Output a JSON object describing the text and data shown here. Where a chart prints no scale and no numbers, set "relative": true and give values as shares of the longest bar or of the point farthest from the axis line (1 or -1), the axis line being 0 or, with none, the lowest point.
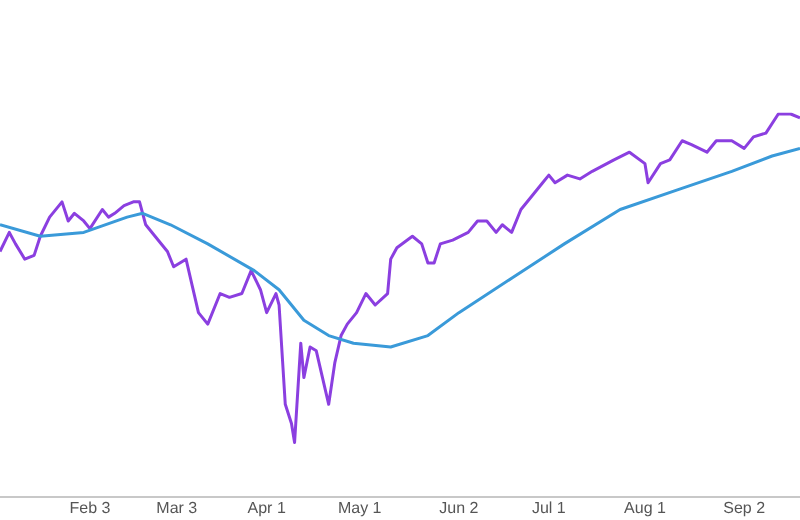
{
  "chart_data": {
    "type": "line",
    "relative": true,
    "xlim": [
      "--01-05",
      "--09-20"
    ],
    "xticks": [
      {
        "value": "--02-03",
        "label": "Feb 3"
      },
      {
        "value": "--03-03",
        "label": "Mar 3"
      },
      {
        "value": "--04-01",
        "label": "Apr 1"
      },
      {
        "value": "--05-01",
        "label": "May 1"
      },
      {
        "value": "--06-02",
        "label": "Jun 2"
      },
      {
        "value": "--07-01",
        "label": "Jul 1"
      },
      {
        "value": "--08-01",
        "label": "Aug 1"
      },
      {
        "value": "--09-02",
        "label": "Sep 2"
      }
    ],
    "series": [
      {
        "color": "#8b3fe0",
        "x": [
          "--01-05",
          "--01-08",
          "--01-10",
          "--01-13",
          "--01-16",
          "--01-18",
          "--01-21",
          "--01-25",
          "--01-27",
          "--01-29",
          "--02-01",
          "--02-03",
          "--02-07",
          "--02-09",
          "--02-11",
          "--02-14",
          "--02-17",
          "--02-19",
          "--02-21",
          "--02-24",
          "--02-28",
          "--03-02",
          "--03-06",
          "--03-08",
          "--03-10",
          "--03-13",
          "--03-17",
          "--03-20",
          "--03-24",
          "--03-27",
          "--03-30",
          "--04-01",
          "--04-04",
          "--04-05",
          "--04-07",
          "--04-09",
          "--04-10",
          "--04-12",
          "--04-13",
          "--04-15",
          "--04-17",
          "--04-19",
          "--04-21",
          "--04-23",
          "--04-25",
          "--04-27",
          "--04-30",
          "--05-03",
          "--05-06",
          "--05-10",
          "--05-11",
          "--05-13",
          "--05-18",
          "--05-21",
          "--05-23",
          "--05-25",
          "--05-27",
          "--05-31",
          "--06-05",
          "--06-08",
          "--06-11",
          "--06-14",
          "--06-16",
          "--06-19",
          "--06-22",
          "--06-26",
          "--06-29",
          "--07-01",
          "--07-03",
          "--07-07",
          "--07-11",
          "--07-15",
          "--07-22",
          "--07-27",
          "--08-01",
          "--08-02",
          "--08-06",
          "--08-09",
          "--08-13",
          "--08-16",
          "--08-21",
          "--08-24",
          "--08-29",
          "--09-02",
          "--09-05",
          "--09-09",
          "--09-13",
          "--09-17",
          "--09-20"
        ],
        "values": [
          0.64,
          0.69,
          0.66,
          0.62,
          0.63,
          0.68,
          0.73,
          0.77,
          0.72,
          0.74,
          0.72,
          0.7,
          0.75,
          0.73,
          0.74,
          0.76,
          0.77,
          0.77,
          0.71,
          0.68,
          0.64,
          0.6,
          0.62,
          0.55,
          0.48,
          0.45,
          0.53,
          0.52,
          0.53,
          0.59,
          0.54,
          0.48,
          0.53,
          0.5,
          0.24,
          0.19,
          0.14,
          0.4,
          0.31,
          0.39,
          0.38,
          0.31,
          0.24,
          0.35,
          0.42,
          0.45,
          0.48,
          0.53,
          0.5,
          0.53,
          0.62,
          0.65,
          0.68,
          0.66,
          0.61,
          0.61,
          0.66,
          0.67,
          0.69,
          0.72,
          0.72,
          0.69,
          0.71,
          0.69,
          0.75,
          0.79,
          0.82,
          0.84,
          0.82,
          0.84,
          0.83,
          0.85,
          0.88,
          0.9,
          0.87,
          0.82,
          0.87,
          0.88,
          0.93,
          0.92,
          0.9,
          0.93,
          0.93,
          0.91,
          0.94,
          0.95,
          1.0,
          1.0,
          0.99
        ]
      },
      {
        "color": "#3a9ad9",
        "x": [
          "--01-05",
          "--01-18",
          "--02-01",
          "--02-15",
          "--02-20",
          "--03-01",
          "--03-13",
          "--03-28",
          "--04-05",
          "--04-13",
          "--04-21",
          "--04-29",
          "--05-11",
          "--05-23",
          "--06-02",
          "--06-19",
          "--07-06",
          "--07-24",
          "--08-11",
          "--08-29",
          "--09-11",
          "--09-20"
        ],
        "values": [
          0.71,
          0.68,
          0.69,
          0.73,
          0.74,
          0.71,
          0.66,
          0.59,
          0.54,
          0.46,
          0.42,
          0.4,
          0.39,
          0.42,
          0.48,
          0.57,
          0.66,
          0.75,
          0.8,
          0.85,
          0.89,
          0.91
        ]
      }
    ]
  }
}
